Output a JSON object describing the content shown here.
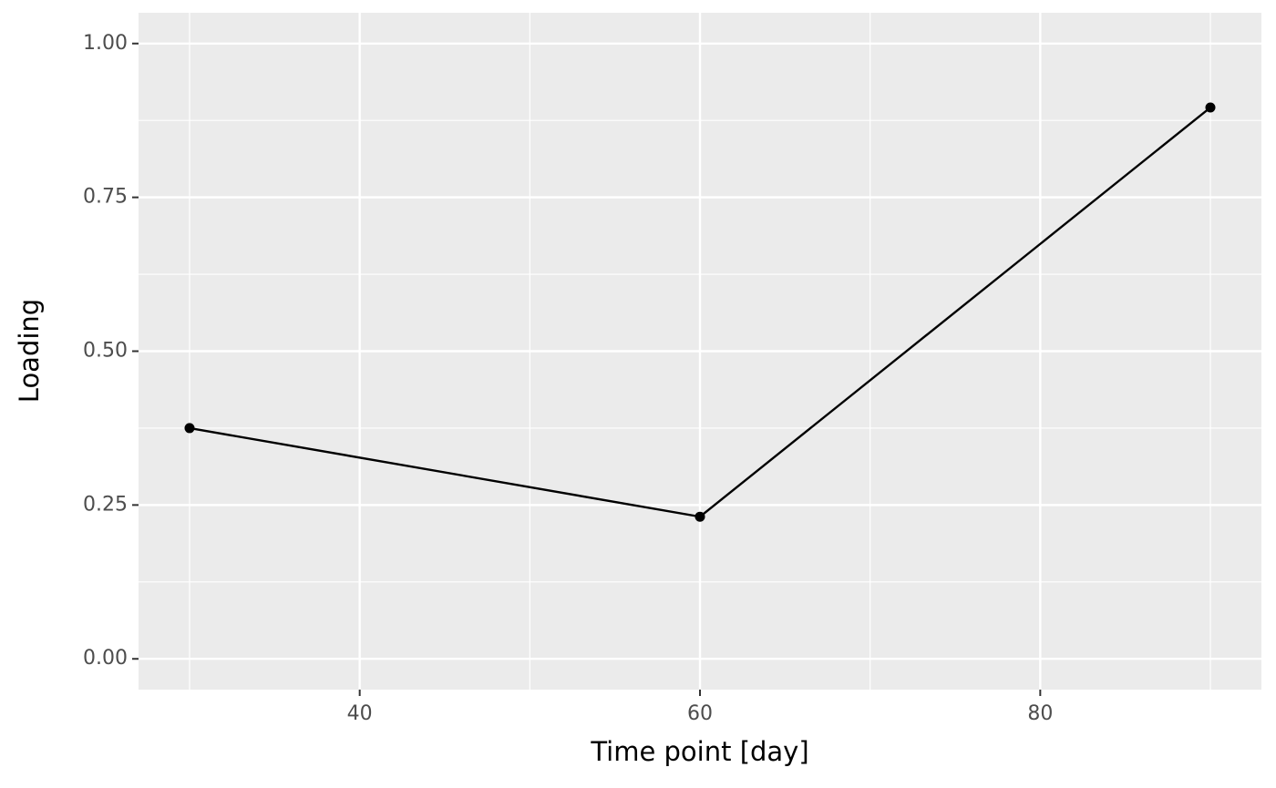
{
  "chart_data": {
    "type": "line",
    "x_label": "Time point [day]",
    "y_label": "Loading",
    "x": [
      30,
      60,
      90
    ],
    "series": [
      {
        "color": "#000000",
        "values": [
          0.375,
          0.231,
          0.896
        ]
      }
    ],
    "xlim": [
      27,
      93
    ],
    "xticks": [
      40,
      60,
      80
    ],
    "ylim": [
      -0.05,
      1.05
    ],
    "yticks": [
      {
        "value": 0,
        "label": "0.00"
      },
      {
        "value": 0.25,
        "label": "0.25"
      },
      {
        "value": 0.5,
        "label": "0.50"
      },
      {
        "value": 0.75,
        "label": "0.75"
      },
      {
        "value": 1,
        "label": "1.00"
      }
    ],
    "grid": true
  }
}
